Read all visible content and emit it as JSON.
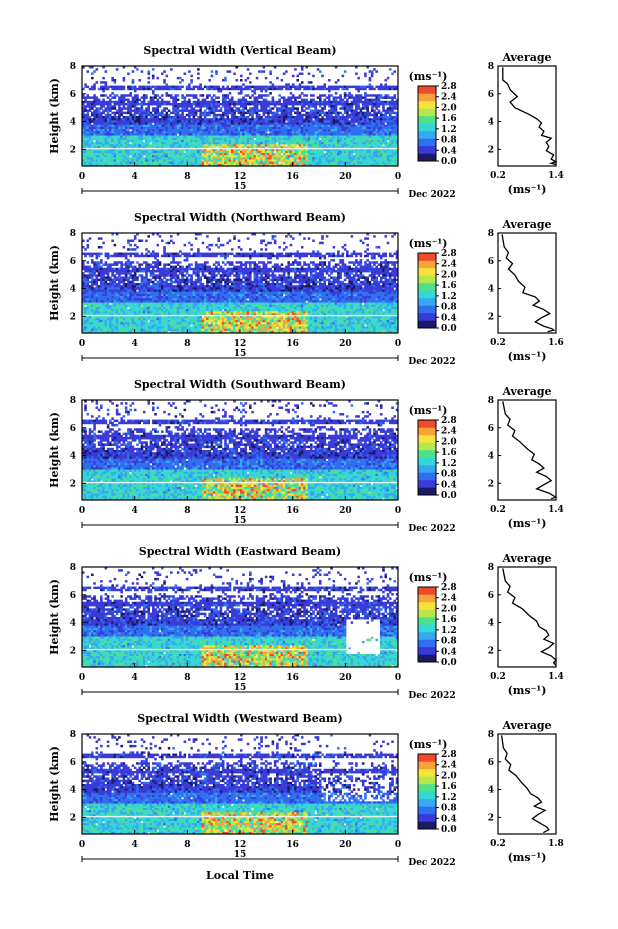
{
  "chart_data": [
    {
      "type": "heatmap",
      "title": "Spectral Width (Vertical Beam)",
      "ylabel": "Height (km)",
      "yticks": [
        "2",
        "4",
        "6",
        "8"
      ],
      "ylim": [
        0.8,
        8
      ],
      "xticks": [
        "0",
        "4",
        "8",
        "12",
        "16",
        "20",
        "0"
      ],
      "xlim": [
        0,
        24
      ],
      "date_label": "15",
      "month_label": "Dec 2022",
      "colorbar": {
        "unit": "(ms⁻¹)",
        "ticks": [
          "0.0",
          "0.4",
          "0.8",
          "1.2",
          "1.6",
          "2.0",
          "2.4",
          "2.8"
        ],
        "range": [
          0,
          2.8
        ]
      },
      "profile": {
        "title": "Average",
        "xlabel": "(ms⁻¹)",
        "xticks": [
          "0.2",
          "1.4"
        ],
        "xlim": [
          0.2,
          1.4
        ],
        "yticks": [
          "2",
          "4",
          "6",
          "8"
        ],
        "ylim": [
          0.8,
          8
        ],
        "x": [
          0.3,
          0.3,
          0.4,
          0.45,
          0.6,
          0.45,
          0.55,
          0.85,
          1.0,
          1.1,
          1.05,
          1.15,
          1.1,
          1.3,
          1.2,
          1.25,
          1.2,
          1.35,
          1.3,
          1.4,
          1.3,
          1.4
        ],
        "y": [
          7.9,
          7.0,
          6.7,
          6.3,
          5.8,
          5.4,
          5.0,
          4.5,
          4.2,
          3.9,
          3.6,
          3.3,
          3.0,
          2.8,
          2.5,
          2.2,
          1.9,
          1.6,
          1.3,
          1.1,
          1.0,
          0.9
        ]
      }
    },
    {
      "type": "heatmap",
      "title": "Spectral Width (Northward Beam)",
      "ylabel": "Height (km)",
      "yticks": [
        "2",
        "4",
        "6",
        "8"
      ],
      "ylim": [
        0.8,
        8
      ],
      "xticks": [
        "0",
        "4",
        "8",
        "12",
        "16",
        "20",
        "0"
      ],
      "xlim": [
        0,
        24
      ],
      "date_label": "15",
      "month_label": "Dec 2022",
      "colorbar": {
        "unit": "(ms⁻¹)",
        "ticks": [
          "0.0",
          "0.4",
          "0.8",
          "1.2",
          "1.6",
          "2.0",
          "2.4",
          "2.8"
        ],
        "range": [
          0,
          2.8
        ]
      },
      "profile": {
        "title": "Average",
        "xlabel": "(ms⁻¹)",
        "xticks": [
          "0.2",
          "1.6"
        ],
        "xlim": [
          0.2,
          1.6
        ],
        "yticks": [
          "2",
          "4",
          "6",
          "8"
        ],
        "ylim": [
          0.8,
          8
        ],
        "x": [
          0.3,
          0.35,
          0.45,
          0.4,
          0.55,
          0.45,
          0.6,
          0.7,
          0.85,
          0.8,
          1.1,
          1.2,
          1.05,
          1.3,
          1.45,
          1.25,
          1.1,
          1.3,
          1.5,
          1.55,
          1.4
        ],
        "y": [
          7.9,
          7.0,
          6.6,
          6.2,
          5.8,
          5.4,
          5.0,
          4.5,
          4.1,
          3.7,
          3.4,
          3.1,
          2.8,
          2.5,
          2.2,
          1.9,
          1.6,
          1.3,
          1.1,
          1.0,
          0.9
        ]
      }
    },
    {
      "type": "heatmap",
      "title": "Spectral Width (Southward Beam)",
      "ylabel": "Height (km)",
      "yticks": [
        "2",
        "4",
        "6",
        "8"
      ],
      "ylim": [
        0.8,
        8
      ],
      "xticks": [
        "0",
        "4",
        "8",
        "12",
        "16",
        "20",
        "0"
      ],
      "xlim": [
        0,
        24
      ],
      "date_label": "15",
      "month_label": "Dec 2022",
      "colorbar": {
        "unit": "(ms⁻¹)",
        "ticks": [
          "0.0",
          "0.4",
          "0.8",
          "1.2",
          "1.6",
          "2.0",
          "2.4",
          "2.8"
        ],
        "range": [
          0,
          2.8
        ]
      },
      "profile": {
        "title": "Average",
        "xlabel": "(ms⁻¹)",
        "xticks": [
          "0.2",
          "1.4"
        ],
        "xlim": [
          0.2,
          1.4
        ],
        "yticks": [
          "2",
          "4",
          "6",
          "8"
        ],
        "ylim": [
          0.8,
          8
        ],
        "x": [
          0.3,
          0.35,
          0.45,
          0.4,
          0.55,
          0.5,
          0.65,
          0.8,
          0.95,
          0.9,
          1.05,
          1.15,
          1.0,
          1.2,
          1.3,
          1.15,
          1.0,
          1.25,
          1.35,
          1.4,
          1.3
        ],
        "y": [
          7.9,
          7.0,
          6.6,
          6.2,
          5.8,
          5.4,
          5.0,
          4.5,
          4.1,
          3.7,
          3.4,
          3.1,
          2.8,
          2.5,
          2.2,
          1.9,
          1.6,
          1.3,
          1.1,
          1.0,
          0.9
        ]
      }
    },
    {
      "type": "heatmap",
      "title": "Spectral Width (Eastward Beam)",
      "ylabel": "Height (km)",
      "yticks": [
        "2",
        "4",
        "6",
        "8"
      ],
      "ylim": [
        0.8,
        8
      ],
      "xticks": [
        "0",
        "4",
        "8",
        "12",
        "16",
        "20",
        "0"
      ],
      "xlim": [
        0,
        24
      ],
      "date_label": "15",
      "month_label": "Dec 2022",
      "colorbar": {
        "unit": "(ms⁻¹)",
        "ticks": [
          "0.0",
          "0.4",
          "0.8",
          "1.2",
          "1.6",
          "2.0",
          "2.4",
          "2.8"
        ],
        "range": [
          0,
          2.8
        ]
      },
      "profile": {
        "title": "Average",
        "xlabel": "(ms⁻¹)",
        "xticks": [
          "0.2",
          "1.4"
        ],
        "xlim": [
          0.2,
          1.4
        ],
        "yticks": [
          "2",
          "4",
          "6",
          "8"
        ],
        "ylim": [
          0.8,
          8
        ],
        "x": [
          0.3,
          0.35,
          0.45,
          0.4,
          0.55,
          0.5,
          0.7,
          0.85,
          1.0,
          1.05,
          1.2,
          1.25,
          1.15,
          1.35,
          1.25,
          1.1,
          1.3,
          1.4,
          1.35,
          1.4
        ],
        "y": [
          7.9,
          7.0,
          6.6,
          6.2,
          5.8,
          5.4,
          5.0,
          4.5,
          4.1,
          3.7,
          3.4,
          3.1,
          2.8,
          2.5,
          2.2,
          1.9,
          1.6,
          1.3,
          1.1,
          0.9
        ]
      }
    },
    {
      "type": "heatmap",
      "title": "Spectral Width (Westward Beam)",
      "ylabel": "Height (km)",
      "yticks": [
        "2",
        "4",
        "6",
        "8"
      ],
      "ylim": [
        0.8,
        8
      ],
      "xticks": [
        "0",
        "4",
        "8",
        "12",
        "16",
        "20",
        "0"
      ],
      "xlim": [
        0,
        24
      ],
      "date_label": "15",
      "month_label": "Dec 2022",
      "colorbar": {
        "unit": "(ms⁻¹)",
        "ticks": [
          "0.0",
          "0.4",
          "0.8",
          "1.2",
          "1.6",
          "2.0",
          "2.4",
          "2.8"
        ],
        "range": [
          0,
          2.8
        ]
      },
      "profile": {
        "title": "Average",
        "xlabel": "(ms⁻¹)",
        "xticks": [
          "0.2",
          "1.8"
        ],
        "xlim": [
          0.2,
          1.8
        ],
        "yticks": [
          "2",
          "4",
          "6",
          "8"
        ],
        "ylim": [
          0.8,
          8
        ],
        "x": [
          0.3,
          0.35,
          0.45,
          0.4,
          0.55,
          0.5,
          0.7,
          0.85,
          1.0,
          1.1,
          1.3,
          1.4,
          1.2,
          1.5,
          1.3,
          1.15,
          1.35,
          1.55,
          1.6,
          1.45
        ],
        "y": [
          7.9,
          7.0,
          6.6,
          6.2,
          5.8,
          5.4,
          5.0,
          4.5,
          4.1,
          3.7,
          3.4,
          3.1,
          2.8,
          2.5,
          2.2,
          1.9,
          1.6,
          1.3,
          1.1,
          0.9
        ]
      }
    }
  ],
  "xlabel_bottom": "Local Time",
  "colormap": [
    "#1a1a66",
    "#3a3ad8",
    "#2f6ff0",
    "#36a8f0",
    "#35d6d8",
    "#4fe08a",
    "#b6e84c",
    "#f6e43c",
    "#f8a23a",
    "#f04a2a"
  ]
}
